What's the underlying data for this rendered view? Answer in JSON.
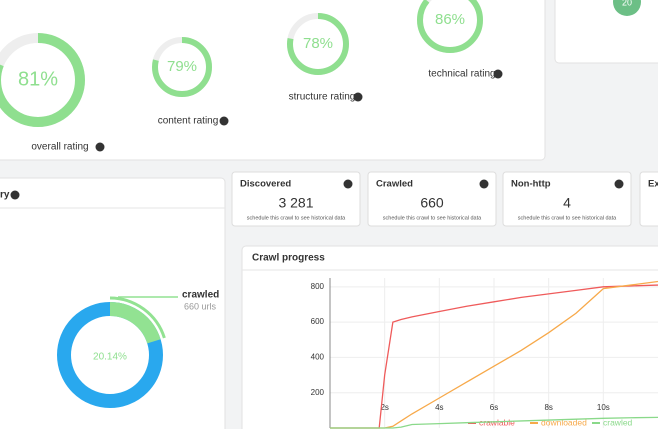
{
  "ratings": [
    {
      "value": 81,
      "value_label": "81%",
      "label": "overall rating"
    },
    {
      "value": 79,
      "value_label": "79%",
      "label": "content rating"
    },
    {
      "value": 78,
      "value_label": "78%",
      "label": "structure rating"
    },
    {
      "value": 86,
      "value_label": "86%",
      "label": "technical rating"
    }
  ],
  "badge": "20",
  "summary_title": "ry",
  "cards": [
    {
      "title": "Discovered",
      "value": "3 281",
      "note": "schedule this crawl to see historical data"
    },
    {
      "title": "Crawled",
      "value": "660",
      "note": "schedule this crawl to see historical data"
    },
    {
      "title": "Non-http",
      "value": "4",
      "note": "schedule this crawl to see historical data"
    },
    {
      "title": "Ext"
    }
  ],
  "donut": {
    "value": 20.14,
    "value_label": "20.14%",
    "label": "crawled",
    "sublabel": "660 urls"
  },
  "crawl_chart": {
    "type": "line",
    "title": "Crawl progress",
    "x": [
      0,
      1,
      1.8,
      2,
      2.3,
      2.6,
      3,
      4,
      5,
      6,
      7,
      8,
      9,
      10,
      11,
      12
    ],
    "series": [
      {
        "name": "crawlable",
        "color": "#ef5b5b",
        "values": [
          0,
          0,
          0,
          300,
          600,
          615,
          630,
          660,
          690,
          715,
          740,
          760,
          780,
          800,
          805,
          810
        ]
      },
      {
        "name": "downloaded",
        "color": "#f7a94a",
        "values": [
          0,
          0,
          0,
          0,
          10,
          40,
          80,
          170,
          260,
          350,
          440,
          540,
          650,
          790,
          810,
          830
        ]
      },
      {
        "name": "crawled",
        "color": "#8ad98a",
        "values": [
          0,
          0,
          0,
          0,
          0,
          5,
          20,
          25,
          30,
          35,
          40,
          45,
          50,
          55,
          58,
          60
        ]
      }
    ],
    "xlim": [
      0,
      12
    ],
    "ylim": [
      0,
      850
    ],
    "xticks": [
      {
        "value": 2,
        "label": "2s"
      },
      {
        "value": 4,
        "label": "4s"
      },
      {
        "value": 6,
        "label": "6s"
      },
      {
        "value": 8,
        "label": "8s"
      },
      {
        "value": 10,
        "label": "10s"
      }
    ],
    "yticks": [
      200,
      400,
      600,
      800
    ],
    "grid": true
  }
}
